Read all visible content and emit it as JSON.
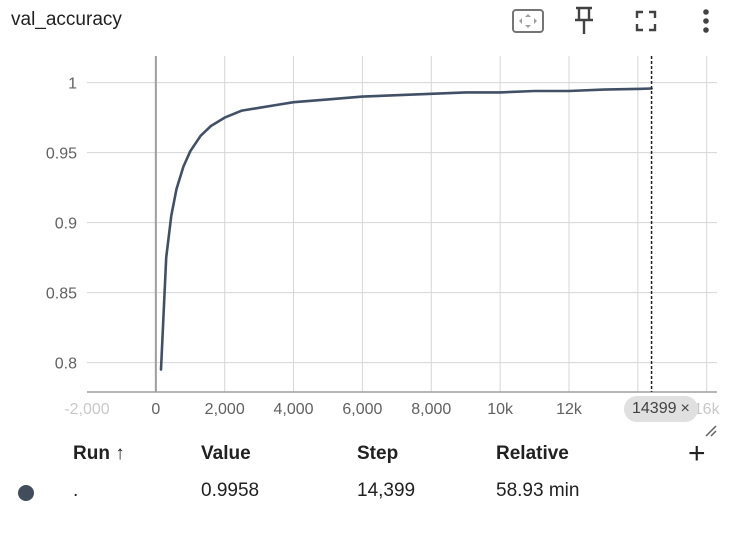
{
  "card": {
    "title": "val_accuracy"
  },
  "toolbar": {
    "icons": [
      "fit-to-view-icon",
      "pin-icon",
      "fullscreen-icon",
      "more-vert-icon"
    ]
  },
  "chart_data": {
    "type": "line",
    "title": "val_accuracy",
    "xlabel": "",
    "ylabel": "",
    "x_ticks": [
      "-2,000",
      "0",
      "2,000",
      "4,000",
      "6,000",
      "8,000",
      "10k",
      "12k",
      "14k",
      "16k"
    ],
    "x_tick_values": [
      -2000,
      0,
      2000,
      4000,
      6000,
      8000,
      10000,
      12000,
      14000,
      16000
    ],
    "y_ticks": [
      "0.8",
      "0.85",
      "0.9",
      "0.95",
      "1"
    ],
    "y_tick_values": [
      0.8,
      0.85,
      0.9,
      0.95,
      1.0
    ],
    "xlim": [
      -2000,
      16300
    ],
    "ylim": [
      0.779,
      1.019
    ],
    "grid": true,
    "series": [
      {
        "color": "#425066",
        "x": [
          150,
          300,
          450,
          600,
          800,
          1000,
          1300,
          1600,
          2000,
          2500,
          3000,
          3500,
          4000,
          5000,
          6000,
          7000,
          8000,
          9000,
          10000,
          11000,
          12000,
          13000,
          14000,
          14399
        ],
        "y": [
          0.795,
          0.875,
          0.905,
          0.924,
          0.94,
          0.951,
          0.962,
          0.969,
          0.975,
          0.98,
          0.982,
          0.984,
          0.986,
          0.988,
          0.99,
          0.991,
          0.992,
          0.993,
          0.993,
          0.994,
          0.994,
          0.995,
          0.9955,
          0.9958
        ]
      }
    ],
    "cursor_step": 14399
  },
  "step_chip": {
    "label": "14399",
    "close": "×"
  },
  "table": {
    "headers": {
      "run": "Run ↑",
      "value": "Value",
      "step": "Step",
      "relative": "Relative"
    },
    "add_column": "+",
    "rows": [
      {
        "run": ".",
        "value": "0.9958",
        "step": "14,399",
        "relative": "58.93 min",
        "color": "#424d5c"
      }
    ]
  }
}
